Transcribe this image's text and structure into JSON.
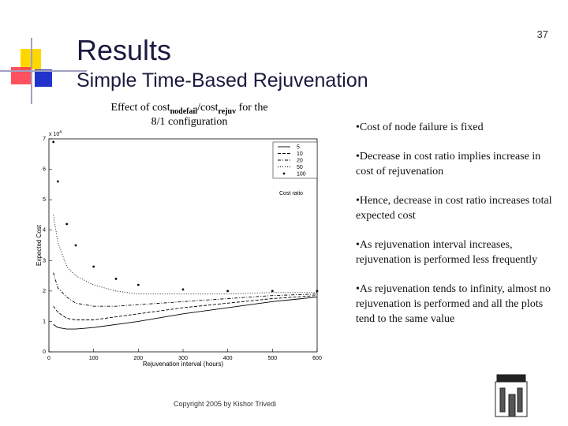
{
  "header": {
    "title": "Results",
    "subtitle": "Simple Time-Based Rejuvenation",
    "page_number": "37"
  },
  "chart_data": {
    "type": "line",
    "title": [
      "Effect of cost",
      "nodefail",
      "/cost",
      "rejuv",
      " for the",
      "8/1 configuration"
    ],
    "x_label": "Rejuvenation interval (hours)",
    "y_label": "Expected Cost",
    "y_multiplier": "x 10",
    "y_multiplier_exp": "4",
    "legend_title": "Cost ratio",
    "x": [
      10,
      20,
      40,
      60,
      100,
      150,
      200,
      300,
      400,
      500,
      600
    ],
    "series": [
      {
        "name": "5",
        "color": "#000000",
        "style": "solid",
        "values": [
          0.9,
          0.8,
          0.75,
          0.75,
          0.8,
          0.9,
          1.0,
          1.25,
          1.45,
          1.65,
          1.8
        ]
      },
      {
        "name": "10",
        "color": "#000000",
        "style": "dashed",
        "values": [
          1.5,
          1.3,
          1.1,
          1.05,
          1.05,
          1.15,
          1.25,
          1.45,
          1.6,
          1.75,
          1.85
        ]
      },
      {
        "name": "20",
        "color": "#000000",
        "style": "dashdot",
        "values": [
          2.6,
          2.1,
          1.8,
          1.6,
          1.5,
          1.5,
          1.55,
          1.65,
          1.75,
          1.85,
          1.9
        ]
      },
      {
        "name": "50",
        "color": "#000000",
        "style": "dotted",
        "values": [
          4.5,
          3.6,
          2.8,
          2.5,
          2.2,
          2.0,
          1.9,
          1.9,
          1.9,
          1.95,
          1.95
        ]
      },
      {
        "name": "100",
        "color": "#000000",
        "style": "points",
        "values": [
          6.9,
          5.6,
          4.2,
          3.5,
          2.8,
          2.4,
          2.2,
          2.05,
          2.0,
          2.0,
          2.0
        ]
      }
    ],
    "xlim": [
      0,
      600
    ],
    "xticks": [
      0,
      100,
      200,
      300,
      400,
      500,
      600
    ],
    "ylim": [
      0,
      7
    ],
    "yticks": [
      0,
      1,
      2,
      3,
      4,
      5,
      6,
      7
    ]
  },
  "bullets": [
    "Cost of node failure is fixed",
    "Decrease in cost ratio implies increase in cost of rejuvenation",
    "Hence, decrease in cost ratio increases total expected cost",
    "As rejuvenation interval increases, rejuvenation is performed less frequently",
    "As rejuvenation tends to infinity, almost no rejuvenation is performed and all the plots tend to the same value"
  ],
  "footer": "Copyright 2005 by Kishor Trivedi"
}
